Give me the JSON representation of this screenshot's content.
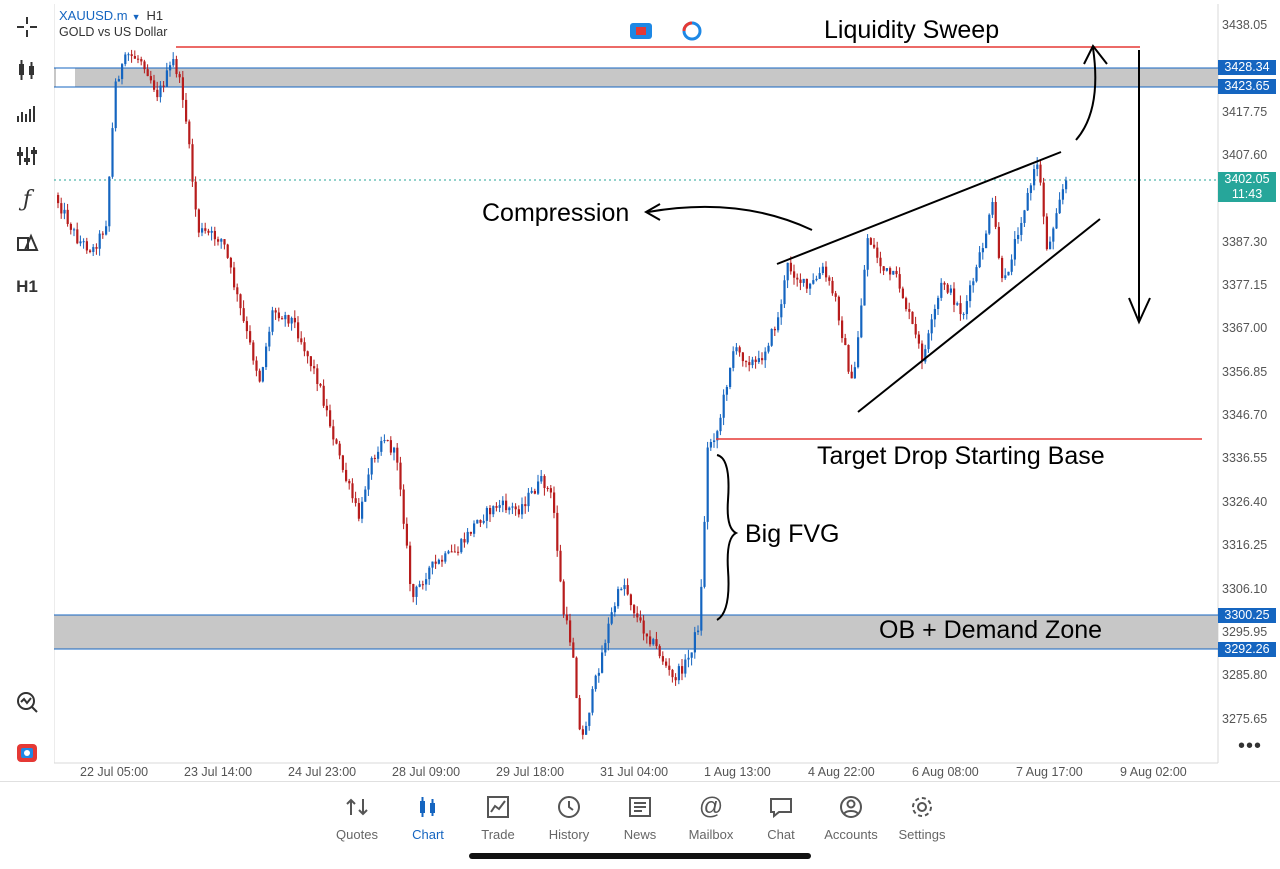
{
  "header": {
    "symbol": "XAUUSD.m",
    "timeframe": "H1",
    "description": "GOLD vs US Dollar"
  },
  "price_axis": {
    "labels": [
      "3438.05",
      "3417.75",
      "3407.60",
      "3387.30",
      "3377.15",
      "3367.00",
      "3356.85",
      "3346.70",
      "3336.55",
      "3326.40",
      "3316.25",
      "3306.10",
      "3295.95",
      "3285.80",
      "3275.65"
    ],
    "tags": [
      {
        "text": "3428.34",
        "color": "#1565c0"
      },
      {
        "text": "3423.65",
        "color": "#1565c0"
      },
      {
        "text": "3402.05",
        "color": "#26a69a"
      },
      {
        "text": "11:43",
        "color": "#26a69a"
      },
      {
        "text": "3300.25",
        "color": "#1565c0"
      },
      {
        "text": "3292.26",
        "color": "#1565c0"
      }
    ]
  },
  "time_axis": [
    "22 Jul 05:00",
    "23 Jul 14:00",
    "24 Jul 23:00",
    "28 Jul 09:00",
    "29 Jul 18:00",
    "31 Jul 04:00",
    "1 Aug 13:00",
    "4 Aug 22:00",
    "6 Aug 08:00",
    "7 Aug 17:00",
    "9 Aug 02:00"
  ],
  "annotations": {
    "liquidity": "Liquidity Sweep",
    "compression": "Compression",
    "target": "Target Drop Starting Base",
    "fvg": "Big FVG",
    "ob": "OB + Demand Zone"
  },
  "zones": {
    "supply": {
      "top": 3428.34,
      "bottom": 3423.65
    },
    "demand": {
      "top": 3300.25,
      "bottom": 3292.26
    }
  },
  "levels": {
    "liquidity_line": 3433.5,
    "target_base": 3340.0,
    "current_price": 3402.05
  },
  "colors": {
    "bull": "#1565c0",
    "bear": "#b71c1c",
    "zone": "#c7c7c7",
    "level": "#e53935",
    "accent": "#1565c0"
  },
  "toolbar": [
    "crosshair-icon",
    "candles-icon",
    "indicators-icon",
    "settings-sliders-icon",
    "function-icon",
    "objects-icon",
    "timeframe-icon"
  ],
  "toolbar_timeframe": "H1",
  "nav": [
    {
      "label": "Quotes",
      "icon": "quotes-icon"
    },
    {
      "label": "Chart",
      "icon": "chart-icon",
      "active": true
    },
    {
      "label": "Trade",
      "icon": "trade-icon"
    },
    {
      "label": "History",
      "icon": "history-icon"
    },
    {
      "label": "News",
      "icon": "news-icon"
    },
    {
      "label": "Mailbox",
      "icon": "mailbox-icon"
    },
    {
      "label": "Chat",
      "icon": "chat-icon"
    },
    {
      "label": "Accounts",
      "icon": "accounts-icon"
    },
    {
      "label": "Settings",
      "icon": "settings-icon"
    }
  ],
  "more_label": "•••"
}
